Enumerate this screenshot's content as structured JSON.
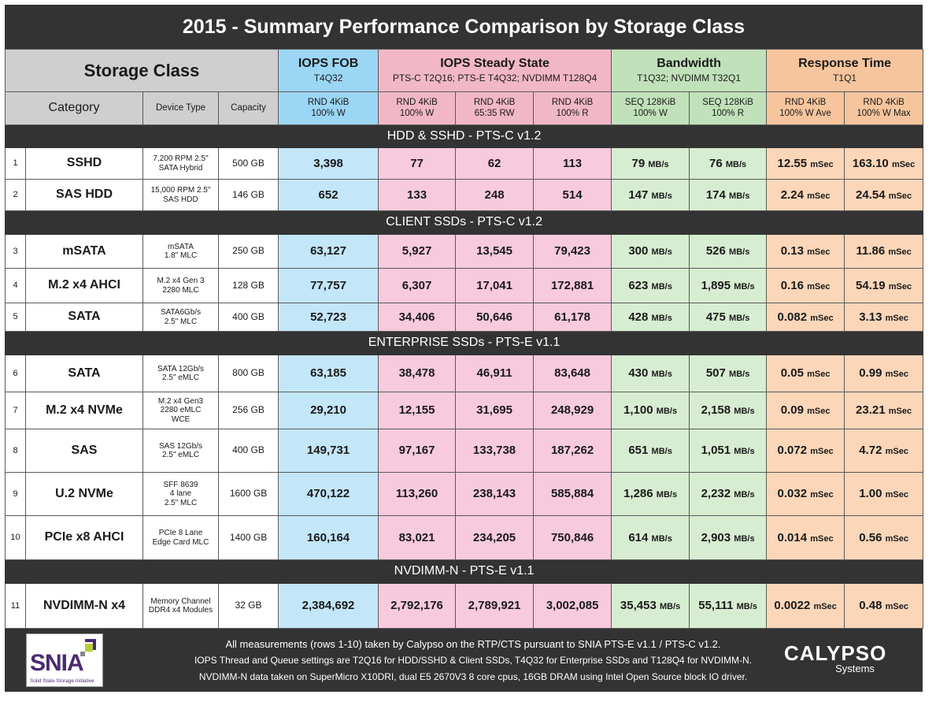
{
  "title": "2015 - Summary Performance Comparison by Storage Class",
  "header": {
    "storage_class": "Storage Class",
    "groups": [
      {
        "title": "IOPS FOB",
        "sub": "T4Q32"
      },
      {
        "title": "IOPS Steady State",
        "sub": "PTS-C T2Q16; PTS-E T4Q32; NVDIMM T128Q4"
      },
      {
        "title": "Bandwidth",
        "sub": "T1Q32; NVDIMM T32Q1"
      },
      {
        "title": "Response Time",
        "sub": "T1Q1"
      }
    ],
    "category": "Category",
    "device_type": "Device Type",
    "capacity": "Capacity",
    "metrics": [
      [
        "RND 4KiB",
        "100% W"
      ],
      [
        "RND 4KiB",
        "100% W"
      ],
      [
        "RND 4KiB",
        "65:35 RW"
      ],
      [
        "RND 4KiB",
        "100% R"
      ],
      [
        "SEQ 128KiB",
        "100% W"
      ],
      [
        "SEQ 128KiB",
        "100% R"
      ],
      [
        "RND 4KiB",
        "100% W Ave"
      ],
      [
        "RND 4KiB",
        "100% W Max"
      ]
    ]
  },
  "units": {
    "bandwidth": "MB/s",
    "response": "mSec"
  },
  "colors": {
    "iops_fob": "#c3e6f9",
    "iops_ss": "#f7cadd",
    "bandwidth": "#d7edd1",
    "response": "#fbd6b9",
    "dark": "#333333"
  },
  "sections": [
    {
      "title": "HDD & SSHD - PTS-C v1.2",
      "rows": [
        {
          "n": "1",
          "category": "SSHD",
          "device": [
            "7,200 RPM 2.5\"",
            "SATA Hybrid"
          ],
          "capacity": "500 GB",
          "fob": "3,398",
          "ss": [
            "77",
            "62",
            "113"
          ],
          "bw": [
            "79",
            "76"
          ],
          "rt": [
            "12.55",
            "163.10"
          ]
        },
        {
          "n": "2",
          "category": "SAS HDD",
          "device": [
            "15,000 RPM 2.5\"",
            "SAS HDD"
          ],
          "capacity": "146 GB",
          "fob": "652",
          "ss": [
            "133",
            "248",
            "514"
          ],
          "bw": [
            "147",
            "174"
          ],
          "rt": [
            "2.24",
            "24.54"
          ]
        }
      ]
    },
    {
      "title": "CLIENT SSDs - PTS-C v1.2",
      "rows": [
        {
          "n": "3",
          "category": "mSATA",
          "device": [
            "mSATA",
            "1.8\" MLC"
          ],
          "capacity": "250 GB",
          "fob": "63,127",
          "ss": [
            "5,927",
            "13,545",
            "79,423"
          ],
          "bw": [
            "300",
            "526"
          ],
          "rt": [
            "0.13",
            "11.86"
          ]
        },
        {
          "n": "4",
          "category": "M.2 x4 AHCI",
          "device": [
            "M.2 x4 Gen 3",
            "2280 MLC"
          ],
          "capacity": "128 GB",
          "fob": "77,757",
          "ss": [
            "6,307",
            "17,041",
            "172,881"
          ],
          "bw": [
            "623",
            "1,895"
          ],
          "rt": [
            "0.16",
            "54.19"
          ]
        },
        {
          "n": "5",
          "category": "SATA",
          "device": [
            "SATA6Gb/s",
            "2.5\" MLC"
          ],
          "capacity": "400 GB",
          "fob": "52,723",
          "ss": [
            "34,406",
            "50,646",
            "61,178"
          ],
          "bw": [
            "428",
            "475"
          ],
          "rt": [
            "0.082",
            "3.13"
          ]
        }
      ]
    },
    {
      "title": "ENTERPRISE SSDs - PTS-E v1.1",
      "rows": [
        {
          "n": "6",
          "category": "SATA",
          "device": [
            "SATA 12Gb/s",
            "2.5\" eMLC"
          ],
          "capacity": "800 GB",
          "fob": "63,185",
          "ss": [
            "38,478",
            "46,911",
            "83,648"
          ],
          "bw": [
            "430",
            "507"
          ],
          "rt": [
            "0.05",
            "0.99"
          ]
        },
        {
          "n": "7",
          "category": "M.2 x4 NVMe",
          "device": [
            "M.2 x4 Gen3",
            "2280 eMLC",
            "WCE"
          ],
          "capacity": "256 GB",
          "fob": "29,210",
          "ss": [
            "12,155",
            "31,695",
            "248,929"
          ],
          "bw": [
            "1,100",
            "2,158"
          ],
          "rt": [
            "0.09",
            "23.21"
          ]
        },
        {
          "n": "8",
          "category": "SAS",
          "device": [
            "SAS 12Gb/s",
            "2.5\" eMLC"
          ],
          "capacity": "400 GB",
          "fob": "149,731",
          "ss": [
            "97,167",
            "133,738",
            "187,262"
          ],
          "bw": [
            "651",
            "1,051"
          ],
          "rt": [
            "0.072",
            "4.72"
          ]
        },
        {
          "n": "9",
          "category": "U.2 NVMe",
          "device": [
            "SFF 8639",
            "4 lane",
            "2.5\" MLC"
          ],
          "capacity": "1600 GB",
          "fob": "470,122",
          "ss": [
            "113,260",
            "238,143",
            "585,884"
          ],
          "bw": [
            "1,286",
            "2,232"
          ],
          "rt": [
            "0.032",
            "1.00"
          ]
        },
        {
          "n": "10",
          "category": "PCIe x8 AHCI",
          "device": [
            "PCIe 8 Lane",
            "Edge Card MLC"
          ],
          "capacity": "1400 GB",
          "fob": "160,164",
          "ss": [
            "83,021",
            "234,205",
            "750,846"
          ],
          "bw": [
            "614",
            "2,903"
          ],
          "rt": [
            "0.014",
            "0.56"
          ]
        }
      ]
    },
    {
      "title": "NVDIMM-N - PTS-E v1.1",
      "rows": [
        {
          "n": "11",
          "category": "NVDIMM-N x4",
          "device": [
            "Memory Channel",
            "DDR4 x4 Modules"
          ],
          "capacity": "32 GB",
          "fob": "2,384,692",
          "ss": [
            "2,792,176",
            "2,789,921",
            "3,002,085"
          ],
          "bw": [
            "35,453",
            "55,111"
          ],
          "rt": [
            "0.0022",
            "0.48"
          ]
        }
      ]
    }
  ],
  "footer": {
    "notes": [
      "All measurements (rows 1-10) taken by Calypso on the RTP/CTS pursuant to SNIA PTS-E v1.1 / PTS-C v1.2.",
      "IOPS Thread and Queue settings are T2Q16 for HDD/SSHD & Client SSDs, T4Q32 for Enterprise SSDs and T128Q4 for NVDIMM-N.",
      "NVDIMM-N data taken on SuperMicro X10DRI, dual E5 2670V3 8 core cpus, 16GB DRAM using Intel Open Source block IO driver."
    ],
    "snia_logo": {
      "word": "SNIA",
      "tagline": "Solid State Storage Initiative"
    },
    "calypso_logo": {
      "word": "CALYPSO",
      "sub": "Systems"
    }
  }
}
